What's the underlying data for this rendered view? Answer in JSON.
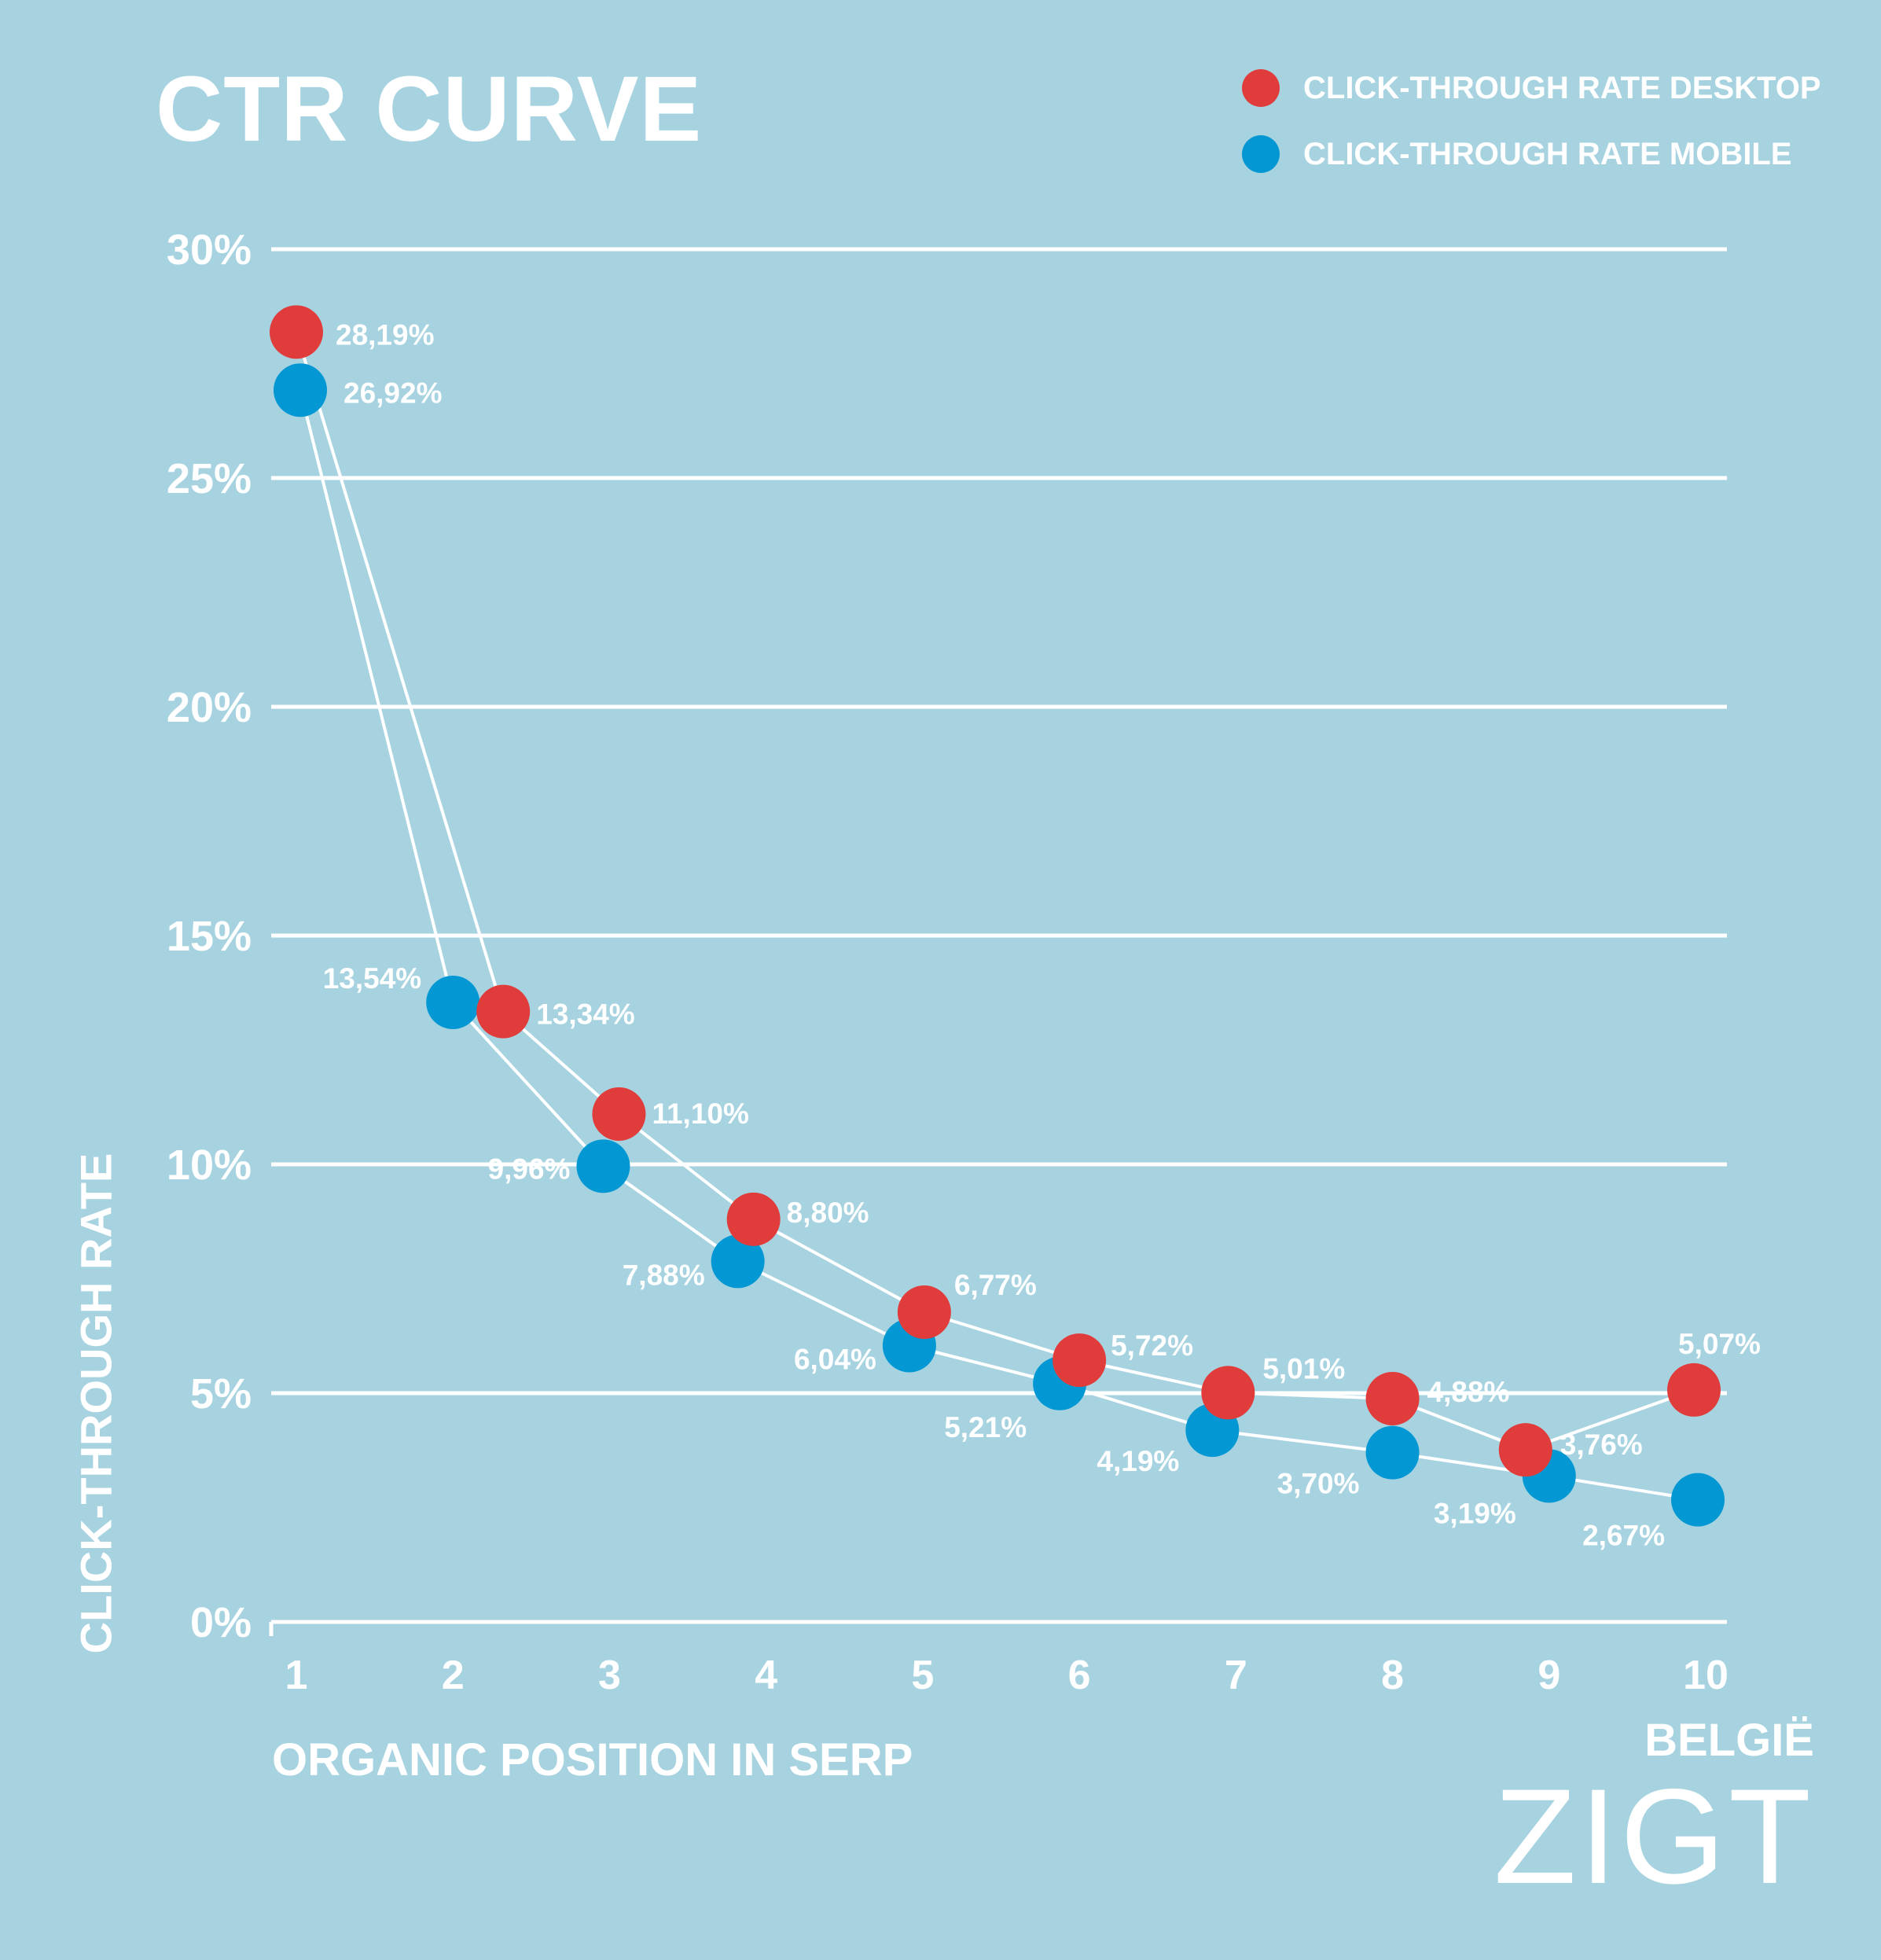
{
  "title": "CTR CURVE",
  "legend": [
    {
      "label": "CLICK-THROUGH RATE DESKTOP",
      "color": "#e03c3b"
    },
    {
      "label": "CLICK-THROUGH RATE MOBILE",
      "color": "#0398d3"
    }
  ],
  "brand": {
    "country": "BELGIË",
    "logo": "ZIGT"
  },
  "chart_data": {
    "type": "line",
    "x": [
      1,
      2,
      3,
      4,
      5,
      6,
      7,
      8,
      9,
      10
    ],
    "xlabel": "ORGANIC POSITION IN SERP",
    "ylabel": "CLICK-THROUGH RATE",
    "ylim": [
      0,
      30
    ],
    "y_ticks": [
      "0%",
      "5%",
      "10%",
      "15%",
      "20%",
      "25%",
      "30%"
    ],
    "grid": true,
    "legend_position": "top-right",
    "series": [
      {
        "name": "CLICK-THROUGH RATE DESKTOP",
        "color": "#e03c3b",
        "values": [
          28.19,
          13.34,
          11.1,
          8.8,
          6.77,
          5.72,
          5.01,
          4.88,
          3.76,
          5.07
        ],
        "labels": [
          "28,19%",
          "13,34%",
          "11,10%",
          "8,80%",
          "6,77%",
          "5,72%",
          "5,01%",
          "4,88%",
          "3,76%",
          "5,07%"
        ]
      },
      {
        "name": "CLICK-THROUGH RATE MOBILE",
        "color": "#0398d3",
        "values": [
          26.92,
          13.54,
          9.96,
          7.88,
          6.04,
          5.21,
          4.19,
          3.7,
          3.19,
          2.67
        ],
        "labels": [
          "26,92%",
          "13,54%",
          "9,96%",
          "7,88%",
          "6,04%",
          "5,21%",
          "4,19%",
          "3,70%",
          "3,19%",
          "2,67%"
        ]
      }
    ]
  }
}
